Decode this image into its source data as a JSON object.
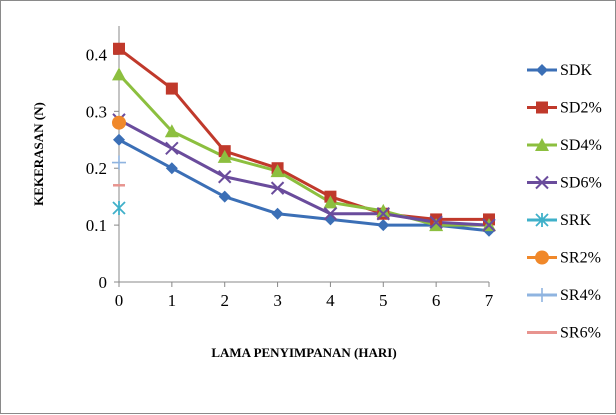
{
  "chart_data": {
    "type": "line",
    "xlabel": "LAMA PENYIMPANAN (HARI)",
    "ylabel": "KEKERASAN (N)",
    "xlim": [
      0,
      7
    ],
    "ylim": [
      0,
      0.45
    ],
    "xticks": [
      "0",
      "1",
      "2",
      "3",
      "4",
      "5",
      "6",
      "7"
    ],
    "yticks": [
      {
        "value": 0,
        "label": "0"
      },
      {
        "value": 0.1,
        "label": "0.1"
      },
      {
        "value": 0.2,
        "label": "0.2"
      },
      {
        "value": 0.3,
        "label": "0.3"
      },
      {
        "value": 0.4,
        "label": "0.4"
      }
    ],
    "grid": false,
    "legend_position": "right",
    "series": [
      {
        "name": "SDK",
        "color": "#3b6fb6",
        "marker": "diamond",
        "x": [
          0,
          1,
          2,
          3,
          4,
          5,
          6,
          7
        ],
        "y": [
          0.25,
          0.2,
          0.15,
          0.12,
          0.11,
          0.1,
          0.1,
          0.09
        ]
      },
      {
        "name": "SD2%",
        "color": "#c0392b",
        "marker": "square",
        "x": [
          0,
          1,
          2,
          3,
          4,
          5,
          6,
          7
        ],
        "y": [
          0.41,
          0.34,
          0.23,
          0.2,
          0.15,
          0.12,
          0.11,
          0.11
        ]
      },
      {
        "name": "SD4%",
        "color": "#8cbf3f",
        "marker": "triangle",
        "x": [
          0,
          1,
          2,
          3,
          4,
          5,
          6,
          7
        ],
        "y": [
          0.365,
          0.265,
          0.22,
          0.195,
          0.14,
          0.125,
          0.1,
          0.1
        ]
      },
      {
        "name": "SD6%",
        "color": "#6a4c9c",
        "marker": "x",
        "x": [
          0,
          1,
          2,
          3,
          4,
          5,
          6,
          7
        ],
        "y": [
          0.285,
          0.235,
          0.185,
          0.165,
          0.12,
          0.12,
          0.105,
          0.1
        ]
      },
      {
        "name": "SRK",
        "color": "#3fb0c9",
        "marker": "star",
        "x": [
          0
        ],
        "y": [
          0.13
        ]
      },
      {
        "name": "SR2%",
        "color": "#f0882a",
        "marker": "circle",
        "x": [
          0
        ],
        "y": [
          0.28
        ]
      },
      {
        "name": "SR4%",
        "color": "#8fb4e0",
        "marker": "plus",
        "x": [
          0
        ],
        "y": [
          0.21
        ]
      },
      {
        "name": "SR6%",
        "color": "#e8948f",
        "marker": "dash",
        "x": [
          0
        ],
        "y": [
          0.17
        ]
      }
    ]
  }
}
